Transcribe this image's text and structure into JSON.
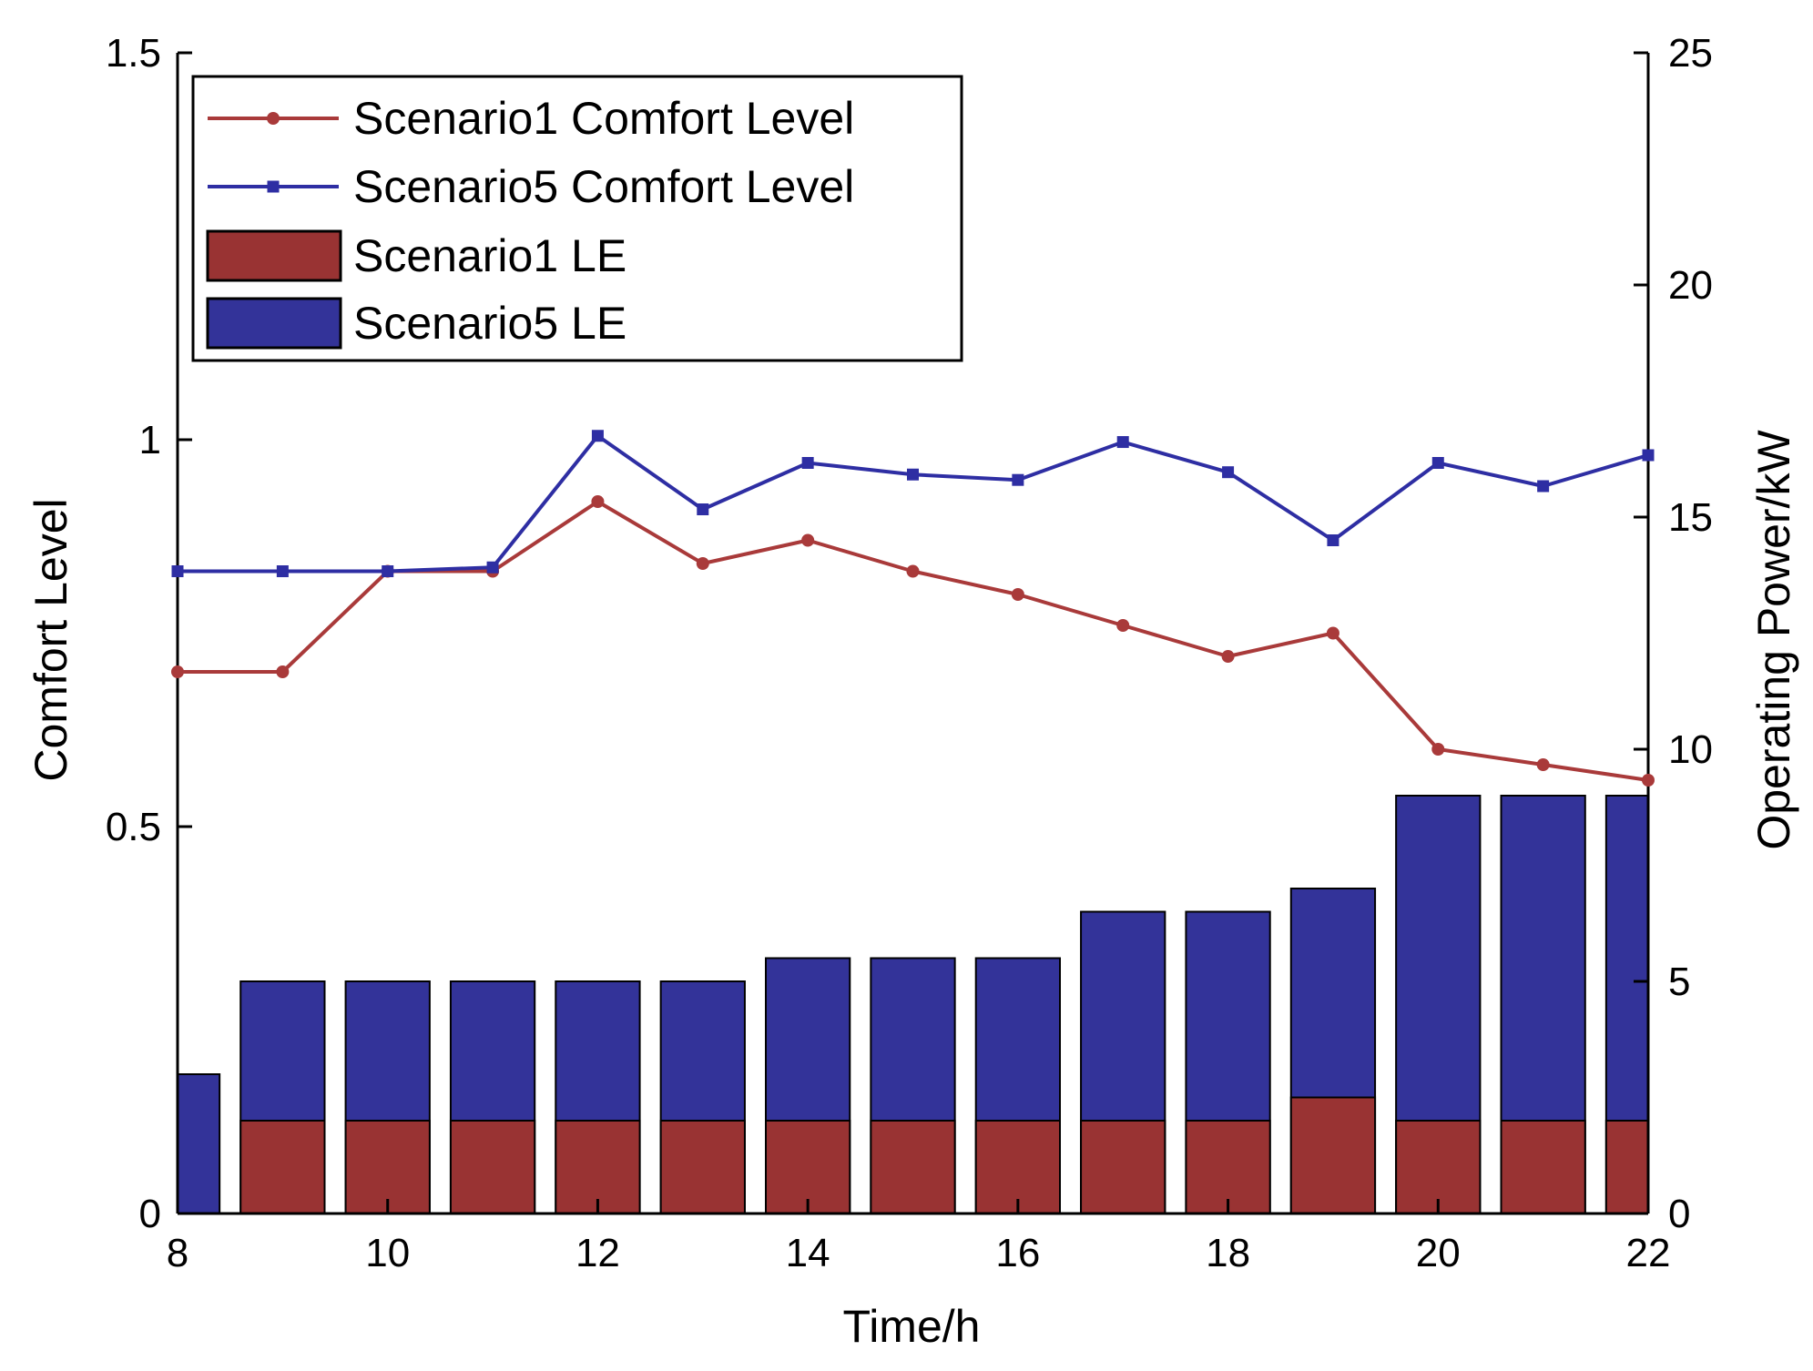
{
  "chart_data": {
    "type": "bar+line",
    "title": "",
    "xlabel": "Time/h",
    "ylabel_left": "Comfort Level",
    "ylabel_right": "Operating Power/kW",
    "xlim": [
      8,
      22
    ],
    "ylim_left": [
      0,
      1.5
    ],
    "ylim_right": [
      0,
      25
    ],
    "x_ticks": [
      "8",
      "10",
      "12",
      "14",
      "16",
      "18",
      "20",
      "22"
    ],
    "y_left_ticks": [
      "0",
      "0.5",
      "1",
      "1.5"
    ],
    "y_right_ticks": [
      "0",
      "5",
      "10",
      "15",
      "20",
      "25"
    ],
    "grid": false,
    "legend_position": "top-left",
    "legend": [
      "Scenario1 Comfort Level",
      "Scenario5 Comfort Level",
      "Scenario1 LE",
      "Scenario5 LE"
    ],
    "x": [
      8,
      9,
      10,
      11,
      12,
      13,
      14,
      15,
      16,
      17,
      18,
      19,
      20,
      21,
      22
    ],
    "lines": [
      {
        "name": "Scenario1 Comfort Level",
        "axis": "left",
        "color": "#a93a3a",
        "marker": "circle",
        "values": [
          0.7,
          0.7,
          0.83,
          0.83,
          0.92,
          0.84,
          0.87,
          0.83,
          0.8,
          0.76,
          0.72,
          0.75,
          0.6,
          0.58,
          0.56
        ]
      },
      {
        "name": "Scenario5 Comfort Level",
        "axis": "left",
        "color": "#2e2ea3",
        "marker": "square",
        "values": [
          0.83,
          0.83,
          0.83,
          0.835,
          1.005,
          0.91,
          0.97,
          0.955,
          0.948,
          0.997,
          0.958,
          0.87,
          0.97,
          0.94,
          0.98
        ]
      }
    ],
    "bars": [
      {
        "name": "Scenario5 LE",
        "axis": "right",
        "color": "#333399",
        "values": [
          3,
          5,
          5,
          5,
          5,
          5,
          5.5,
          5.5,
          5.5,
          6.5,
          6.5,
          7,
          9,
          9,
          9
        ]
      },
      {
        "name": "Scenario1 LE",
        "axis": "right",
        "color": "#993333",
        "values": [
          0,
          2,
          2,
          2,
          2,
          2,
          2,
          2,
          2,
          2,
          2,
          2.5,
          2,
          2,
          2
        ]
      }
    ]
  }
}
